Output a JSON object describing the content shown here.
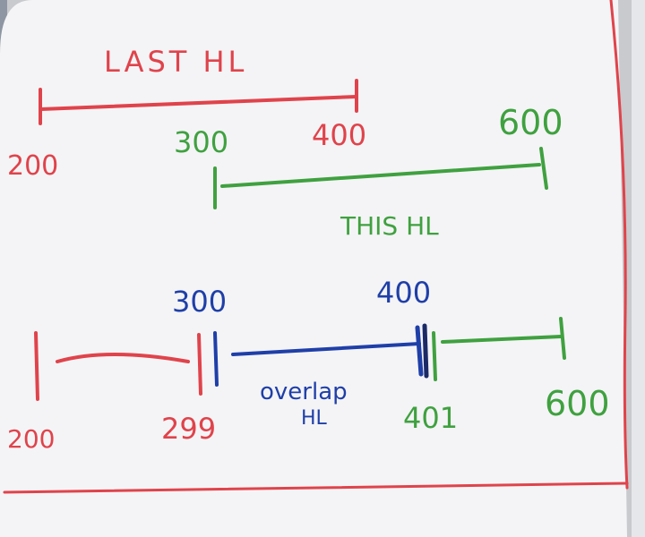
{
  "colors": {
    "red": "#e0434b",
    "green": "#3fa13f",
    "blue": "#1f3fa8",
    "board": "#f4f4f6",
    "shadow": "#d9dadd",
    "background": "#c8cacd",
    "wall": "#8e96a3"
  },
  "top_section": {
    "last_label": "LAST HL",
    "last_start": "200",
    "last_end": "400",
    "this_start": "300",
    "this_end": "600",
    "this_label": "THIS HL"
  },
  "bottom_section": {
    "red_start": "200",
    "red_end": "299",
    "overlap_start": "300",
    "overlap_end": "400",
    "overlap_label_line1": "overlap",
    "overlap_label_line2": "HL",
    "green_start": "401",
    "green_end": "600"
  }
}
